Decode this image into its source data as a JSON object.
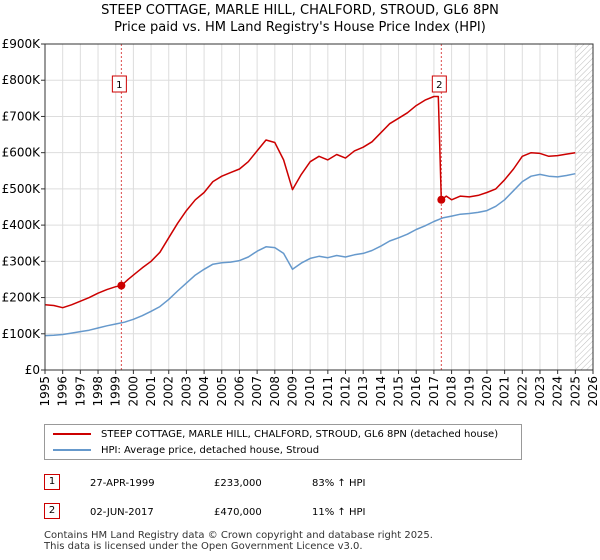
{
  "colors": {
    "price": "#cc0000",
    "hpi": "#6699cc",
    "band": "#dde6f3",
    "sale_marker": "#cc0000"
  },
  "table": {
    "rows": [
      {
        "num": "1",
        "date": "27-APR-1999",
        "price": "£233,000",
        "hpi": "83% ↑ HPI"
      },
      {
        "num": "2",
        "date": "02-JUN-2017",
        "price": "£470,000",
        "hpi": "11% ↑ HPI"
      }
    ]
  },
  "footer": {
    "line1": "Contains HM Land Registry data © Crown copyright and database right 2025.",
    "line2": "This data is licensed under the Open Government Licence v3.0."
  },
  "chart_data": {
    "type": "line",
    "title": "STEEP COTTAGE, MARLE HILL, CHALFORD, STROUD, GL6 8PN",
    "subtitle": "Price paid vs. HM Land Registry's House Price Index (HPI)",
    "xlim": [
      1995,
      2026
    ],
    "ylim": [
      0,
      900000
    ],
    "x_ticks": [
      "1995",
      "1996",
      "1997",
      "1998",
      "1999",
      "2000",
      "2001",
      "2002",
      "2003",
      "2004",
      "2005",
      "2006",
      "2007",
      "2008",
      "2009",
      "2010",
      "2011",
      "2012",
      "2013",
      "2014",
      "2015",
      "2016",
      "2017",
      "2018",
      "2019",
      "2020",
      "2021",
      "2022",
      "2023",
      "2024",
      "2025",
      "2026"
    ],
    "y_ticks": [
      {
        "value": 0,
        "label": "£0"
      },
      {
        "value": 100000,
        "label": "£100K"
      },
      {
        "value": 200000,
        "label": "£200K"
      },
      {
        "value": 300000,
        "label": "£300K"
      },
      {
        "value": 400000,
        "label": "£400K"
      },
      {
        "value": 500000,
        "label": "£500K"
      },
      {
        "value": 600000,
        "label": "£600K"
      },
      {
        "value": 700000,
        "label": "£700K"
      },
      {
        "value": 800000,
        "label": "£800K"
      },
      {
        "value": 900000,
        "label": "£900K"
      }
    ],
    "grid": true,
    "future_band_start": 2025.0,
    "series": [
      {
        "name": "STEEP COTTAGE, MARLE HILL, CHALFORD, STROUD, GL6 8PN (detached house)",
        "color": "#cc0000",
        "points": [
          [
            1995.0,
            180000
          ],
          [
            1995.5,
            178000
          ],
          [
            1996.0,
            172000
          ],
          [
            1996.5,
            180000
          ],
          [
            1997.0,
            190000
          ],
          [
            1997.5,
            200000
          ],
          [
            1998.0,
            212000
          ],
          [
            1998.5,
            222000
          ],
          [
            1999.0,
            230000
          ],
          [
            1999.32,
            233000
          ],
          [
            1999.7,
            250000
          ],
          [
            2000.0,
            262000
          ],
          [
            2000.5,
            282000
          ],
          [
            2001.0,
            300000
          ],
          [
            2001.5,
            325000
          ],
          [
            2002.0,
            365000
          ],
          [
            2002.5,
            405000
          ],
          [
            2003.0,
            440000
          ],
          [
            2003.5,
            470000
          ],
          [
            2004.0,
            490000
          ],
          [
            2004.5,
            520000
          ],
          [
            2005.0,
            535000
          ],
          [
            2005.5,
            545000
          ],
          [
            2006.0,
            555000
          ],
          [
            2006.5,
            575000
          ],
          [
            2007.0,
            605000
          ],
          [
            2007.5,
            635000
          ],
          [
            2008.0,
            628000
          ],
          [
            2008.5,
            580000
          ],
          [
            2009.0,
            498000
          ],
          [
            2009.5,
            540000
          ],
          [
            2010.0,
            575000
          ],
          [
            2010.5,
            590000
          ],
          [
            2011.0,
            580000
          ],
          [
            2011.5,
            595000
          ],
          [
            2012.0,
            585000
          ],
          [
            2012.5,
            605000
          ],
          [
            2013.0,
            615000
          ],
          [
            2013.5,
            630000
          ],
          [
            2014.0,
            655000
          ],
          [
            2014.5,
            680000
          ],
          [
            2015.0,
            695000
          ],
          [
            2015.5,
            710000
          ],
          [
            2016.0,
            730000
          ],
          [
            2016.5,
            745000
          ],
          [
            2017.0,
            755000
          ],
          [
            2017.25,
            755000
          ],
          [
            2017.42,
            470000
          ],
          [
            2017.7,
            480000
          ],
          [
            2018.0,
            470000
          ],
          [
            2018.5,
            480000
          ],
          [
            2019.0,
            478000
          ],
          [
            2019.5,
            482000
          ],
          [
            2020.0,
            490000
          ],
          [
            2020.5,
            500000
          ],
          [
            2021.0,
            525000
          ],
          [
            2021.5,
            555000
          ],
          [
            2022.0,
            590000
          ],
          [
            2022.5,
            600000
          ],
          [
            2023.0,
            598000
          ],
          [
            2023.5,
            590000
          ],
          [
            2024.0,
            592000
          ],
          [
            2024.5,
            596000
          ],
          [
            2025.0,
            600000
          ]
        ]
      },
      {
        "name": "HPI: Average price, detached house, Stroud",
        "color": "#6699cc",
        "points": [
          [
            1995.0,
            95000
          ],
          [
            1995.5,
            96000
          ],
          [
            1996.0,
            98000
          ],
          [
            1996.5,
            102000
          ],
          [
            1997.0,
            106000
          ],
          [
            1997.5,
            110000
          ],
          [
            1998.0,
            116000
          ],
          [
            1998.5,
            122000
          ],
          [
            1999.0,
            127000
          ],
          [
            1999.5,
            132000
          ],
          [
            2000.0,
            140000
          ],
          [
            2000.5,
            150000
          ],
          [
            2001.0,
            162000
          ],
          [
            2001.5,
            175000
          ],
          [
            2002.0,
            195000
          ],
          [
            2002.5,
            218000
          ],
          [
            2003.0,
            240000
          ],
          [
            2003.5,
            262000
          ],
          [
            2004.0,
            278000
          ],
          [
            2004.5,
            292000
          ],
          [
            2005.0,
            296000
          ],
          [
            2005.5,
            298000
          ],
          [
            2006.0,
            302000
          ],
          [
            2006.5,
            312000
          ],
          [
            2007.0,
            328000
          ],
          [
            2007.5,
            340000
          ],
          [
            2008.0,
            338000
          ],
          [
            2008.5,
            322000
          ],
          [
            2009.0,
            278000
          ],
          [
            2009.5,
            295000
          ],
          [
            2010.0,
            308000
          ],
          [
            2010.5,
            314000
          ],
          [
            2011.0,
            310000
          ],
          [
            2011.5,
            316000
          ],
          [
            2012.0,
            312000
          ],
          [
            2012.5,
            318000
          ],
          [
            2013.0,
            322000
          ],
          [
            2013.5,
            330000
          ],
          [
            2014.0,
            342000
          ],
          [
            2014.5,
            356000
          ],
          [
            2015.0,
            365000
          ],
          [
            2015.5,
            375000
          ],
          [
            2016.0,
            388000
          ],
          [
            2016.5,
            398000
          ],
          [
            2017.0,
            410000
          ],
          [
            2017.5,
            420000
          ],
          [
            2018.0,
            425000
          ],
          [
            2018.5,
            430000
          ],
          [
            2019.0,
            432000
          ],
          [
            2019.5,
            435000
          ],
          [
            2020.0,
            440000
          ],
          [
            2020.5,
            452000
          ],
          [
            2021.0,
            470000
          ],
          [
            2021.5,
            495000
          ],
          [
            2022.0,
            520000
          ],
          [
            2022.5,
            535000
          ],
          [
            2023.0,
            540000
          ],
          [
            2023.5,
            535000
          ],
          [
            2024.0,
            533000
          ],
          [
            2024.5,
            537000
          ],
          [
            2025.0,
            542000
          ]
        ]
      }
    ],
    "sales": [
      {
        "label": "1",
        "x": 1999.32,
        "y": 233000
      },
      {
        "label": "2",
        "x": 2017.42,
        "y": 470000
      }
    ]
  }
}
